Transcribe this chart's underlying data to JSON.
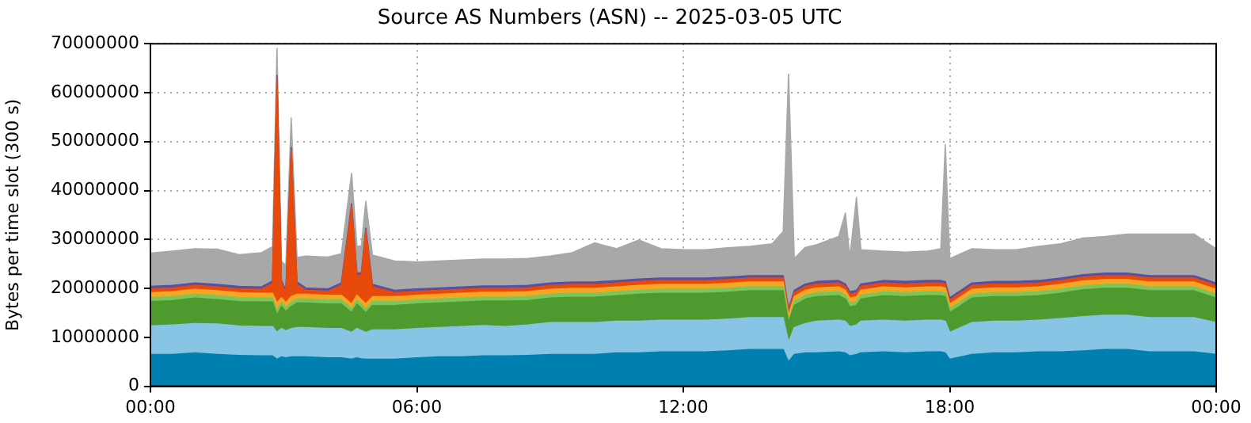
{
  "chart_data": {
    "type": "area",
    "stacked": true,
    "title": "Source AS Numbers (ASN) -- 2025-03-05 UTC",
    "ylabel": "Bytes per time slot (300 s)",
    "x": [
      0,
      0.5,
      1,
      1.5,
      2,
      2.5,
      2.75,
      2.85,
      2.95,
      3.05,
      3.17,
      3.3,
      3.5,
      4,
      4.3,
      4.53,
      4.65,
      4.75,
      4.85,
      5,
      5.5,
      6,
      6.5,
      7,
      7.5,
      8,
      8.5,
      9,
      9.5,
      10,
      10.5,
      11,
      11.5,
      12,
      12.5,
      13,
      13.5,
      14,
      14.25,
      14.37,
      14.5,
      14.75,
      15,
      15.5,
      15.65,
      15.75,
      15.9,
      16,
      16.5,
      17,
      17.5,
      17.8,
      17.9,
      18,
      18.5,
      19,
      19.5,
      20,
      20.5,
      21,
      21.5,
      22,
      22.5,
      23,
      23.5,
      24
    ],
    "series": [
      {
        "color": "#0080b0",
        "values": [
          6500000,
          6500000,
          6800000,
          6500000,
          6300000,
          6200000,
          6200000,
          5500000,
          6000000,
          5800000,
          6000000,
          6000000,
          6000000,
          5800000,
          5800000,
          5500000,
          5800000,
          5600000,
          5500000,
          5500000,
          5500000,
          5800000,
          6000000,
          6000000,
          6200000,
          6200000,
          6300000,
          6500000,
          6500000,
          6500000,
          6800000,
          6800000,
          7000000,
          7000000,
          7000000,
          7200000,
          7500000,
          7500000,
          7500000,
          5000000,
          6500000,
          6800000,
          6800000,
          7000000,
          6800000,
          6200000,
          6500000,
          6800000,
          7000000,
          6800000,
          7000000,
          7000000,
          6800000,
          5500000,
          6500000,
          6800000,
          6800000,
          7000000,
          7000000,
          7200000,
          7500000,
          7500000,
          7000000,
          7000000,
          7000000,
          6500000
        ]
      },
      {
        "color": "#88c4e4",
        "values": [
          5800000,
          6000000,
          6000000,
          6200000,
          6000000,
          6000000,
          6000000,
          5500000,
          5800000,
          5500000,
          5800000,
          6000000,
          6000000,
          6000000,
          6000000,
          5500000,
          6000000,
          5800000,
          5500000,
          6000000,
          6000000,
          6000000,
          6000000,
          6200000,
          6200000,
          6000000,
          6200000,
          6500000,
          6500000,
          6500000,
          6500000,
          6500000,
          6500000,
          6500000,
          6500000,
          6500000,
          6500000,
          6500000,
          6500000,
          4000000,
          5500000,
          6000000,
          6500000,
          6500000,
          6500000,
          6000000,
          6000000,
          6500000,
          6500000,
          6500000,
          6500000,
          6500000,
          6500000,
          5500000,
          6500000,
          6500000,
          6500000,
          6500000,
          6800000,
          7000000,
          7000000,
          7000000,
          7000000,
          7000000,
          7000000,
          6500000
        ]
      },
      {
        "color": "#4e9a2e",
        "values": [
          5000000,
          5000000,
          5200000,
          5000000,
          5000000,
          5000000,
          5000000,
          3500000,
          4500000,
          4000000,
          4500000,
          5000000,
          5000000,
          5000000,
          5000000,
          4000000,
          5000000,
          4500000,
          4000000,
          5000000,
          5000000,
          5000000,
          5000000,
          5000000,
          5000000,
          5200000,
          5000000,
          5000000,
          5200000,
          5200000,
          5200000,
          5500000,
          5500000,
          5500000,
          5500000,
          5500000,
          5500000,
          5500000,
          5500000,
          4000000,
          4500000,
          5000000,
          5000000,
          5000000,
          4500000,
          4000000,
          4000000,
          4500000,
          5000000,
          5000000,
          5000000,
          5000000,
          5000000,
          4000000,
          5000000,
          5000000,
          5000000,
          5000000,
          5200000,
          5500000,
          5500000,
          5500000,
          5500000,
          5500000,
          5500000,
          5000000
        ]
      },
      {
        "color": "#7dc45a",
        "values": [
          800000,
          800000,
          800000,
          800000,
          800000,
          800000,
          800000,
          1000000,
          800000,
          800000,
          800000,
          800000,
          800000,
          800000,
          800000,
          800000,
          800000,
          800000,
          800000,
          800000,
          800000,
          800000,
          800000,
          800000,
          800000,
          800000,
          800000,
          800000,
          800000,
          800000,
          800000,
          800000,
          800000,
          800000,
          800000,
          800000,
          800000,
          800000,
          800000,
          500000,
          800000,
          800000,
          800000,
          800000,
          800000,
          800000,
          800000,
          800000,
          800000,
          800000,
          800000,
          800000,
          800000,
          800000,
          800000,
          800000,
          800000,
          800000,
          800000,
          800000,
          800000,
          800000,
          800000,
          800000,
          800000,
          800000
        ]
      },
      {
        "color": "#f5a623",
        "values": [
          1000000,
          1000000,
          1000000,
          1000000,
          1000000,
          1000000,
          1000000,
          1500000,
          1000000,
          1000000,
          1200000,
          1000000,
          1000000,
          1000000,
          1000000,
          1000000,
          1000000,
          1000000,
          1000000,
          1000000,
          1000000,
          1000000,
          1000000,
          1000000,
          1000000,
          1000000,
          1000000,
          1000000,
          1000000,
          1000000,
          1000000,
          1000000,
          1000000,
          1000000,
          1000000,
          1000000,
          1000000,
          1000000,
          1000000,
          1000000,
          1000000,
          1000000,
          1000000,
          1000000,
          1000000,
          1000000,
          1000000,
          1000000,
          1000000,
          1000000,
          1000000,
          1000000,
          1000000,
          1000000,
          1000000,
          1000000,
          1000000,
          1000000,
          1000000,
          1000000,
          1000000,
          1000000,
          1000000,
          1000000,
          1000000,
          1000000
        ]
      },
      {
        "color": "#e84a0c",
        "values": [
          800000,
          800000,
          800000,
          800000,
          800000,
          800000,
          2000000,
          46000000,
          3000000,
          2000000,
          30000000,
          2000000,
          800000,
          800000,
          2000000,
          20000000,
          4000000,
          5000000,
          15000000,
          2000000,
          800000,
          800000,
          800000,
          800000,
          800000,
          800000,
          800000,
          800000,
          800000,
          800000,
          800000,
          800000,
          800000,
          800000,
          800000,
          800000,
          800000,
          800000,
          800000,
          800000,
          800000,
          800000,
          800000,
          800000,
          800000,
          800000,
          800000,
          800000,
          800000,
          800000,
          800000,
          800000,
          800000,
          800000,
          800000,
          800000,
          800000,
          800000,
          800000,
          800000,
          800000,
          800000,
          800000,
          800000,
          800000,
          800000
        ]
      },
      {
        "color": "#5a4fa0",
        "values": [
          500000,
          500000,
          500000,
          500000,
          500000,
          500000,
          500000,
          500000,
          500000,
          500000,
          500000,
          500000,
          500000,
          500000,
          500000,
          500000,
          500000,
          500000,
          500000,
          500000,
          500000,
          500000,
          500000,
          500000,
          500000,
          500000,
          500000,
          500000,
          500000,
          500000,
          500000,
          500000,
          500000,
          500000,
          500000,
          500000,
          500000,
          500000,
          500000,
          500000,
          500000,
          500000,
          500000,
          500000,
          500000,
          500000,
          500000,
          500000,
          500000,
          500000,
          500000,
          500000,
          500000,
          500000,
          500000,
          500000,
          500000,
          500000,
          500000,
          500000,
          500000,
          500000,
          500000,
          500000,
          500000,
          500000
        ]
      },
      {
        "color": "#a8a8a8",
        "values": [
          6800000,
          7000000,
          7000000,
          7200000,
          6500000,
          7000000,
          7000000,
          5500000,
          4000000,
          5000000,
          6000000,
          5000000,
          6500000,
          6500000,
          6000000,
          6200000,
          5500000,
          5500000,
          5500000,
          6000000,
          6000000,
          5500000,
          5500000,
          5500000,
          5500000,
          5500000,
          5500000,
          5500000,
          6000000,
          8000000,
          6500000,
          8000000,
          6000000,
          5800000,
          5800000,
          6000000,
          6000000,
          6500000,
          9000000,
          48000000,
          6500000,
          7500000,
          7500000,
          9000000,
          14500000,
          7000000,
          19000000,
          7000000,
          6000000,
          6000000,
          6000000,
          6500000,
          28000000,
          8000000,
          7000000,
          6500000,
          6500000,
          7000000,
          7000000,
          7500000,
          7500000,
          8000000,
          8500000,
          8500000,
          8500000,
          7000000
        ]
      }
    ],
    "xlim": [
      0,
      24
    ],
    "xticks": [
      {
        "value": 0,
        "label": "00:00"
      },
      {
        "value": 6,
        "label": "06:00"
      },
      {
        "value": 12,
        "label": "12:00"
      },
      {
        "value": 18,
        "label": "18:00"
      },
      {
        "value": 24,
        "label": "00:00"
      }
    ],
    "ylim": [
      0,
      70000000
    ],
    "yticks": [
      0,
      10000000,
      20000000,
      30000000,
      40000000,
      50000000,
      60000000,
      70000000
    ],
    "grid": true,
    "legend": false
  }
}
